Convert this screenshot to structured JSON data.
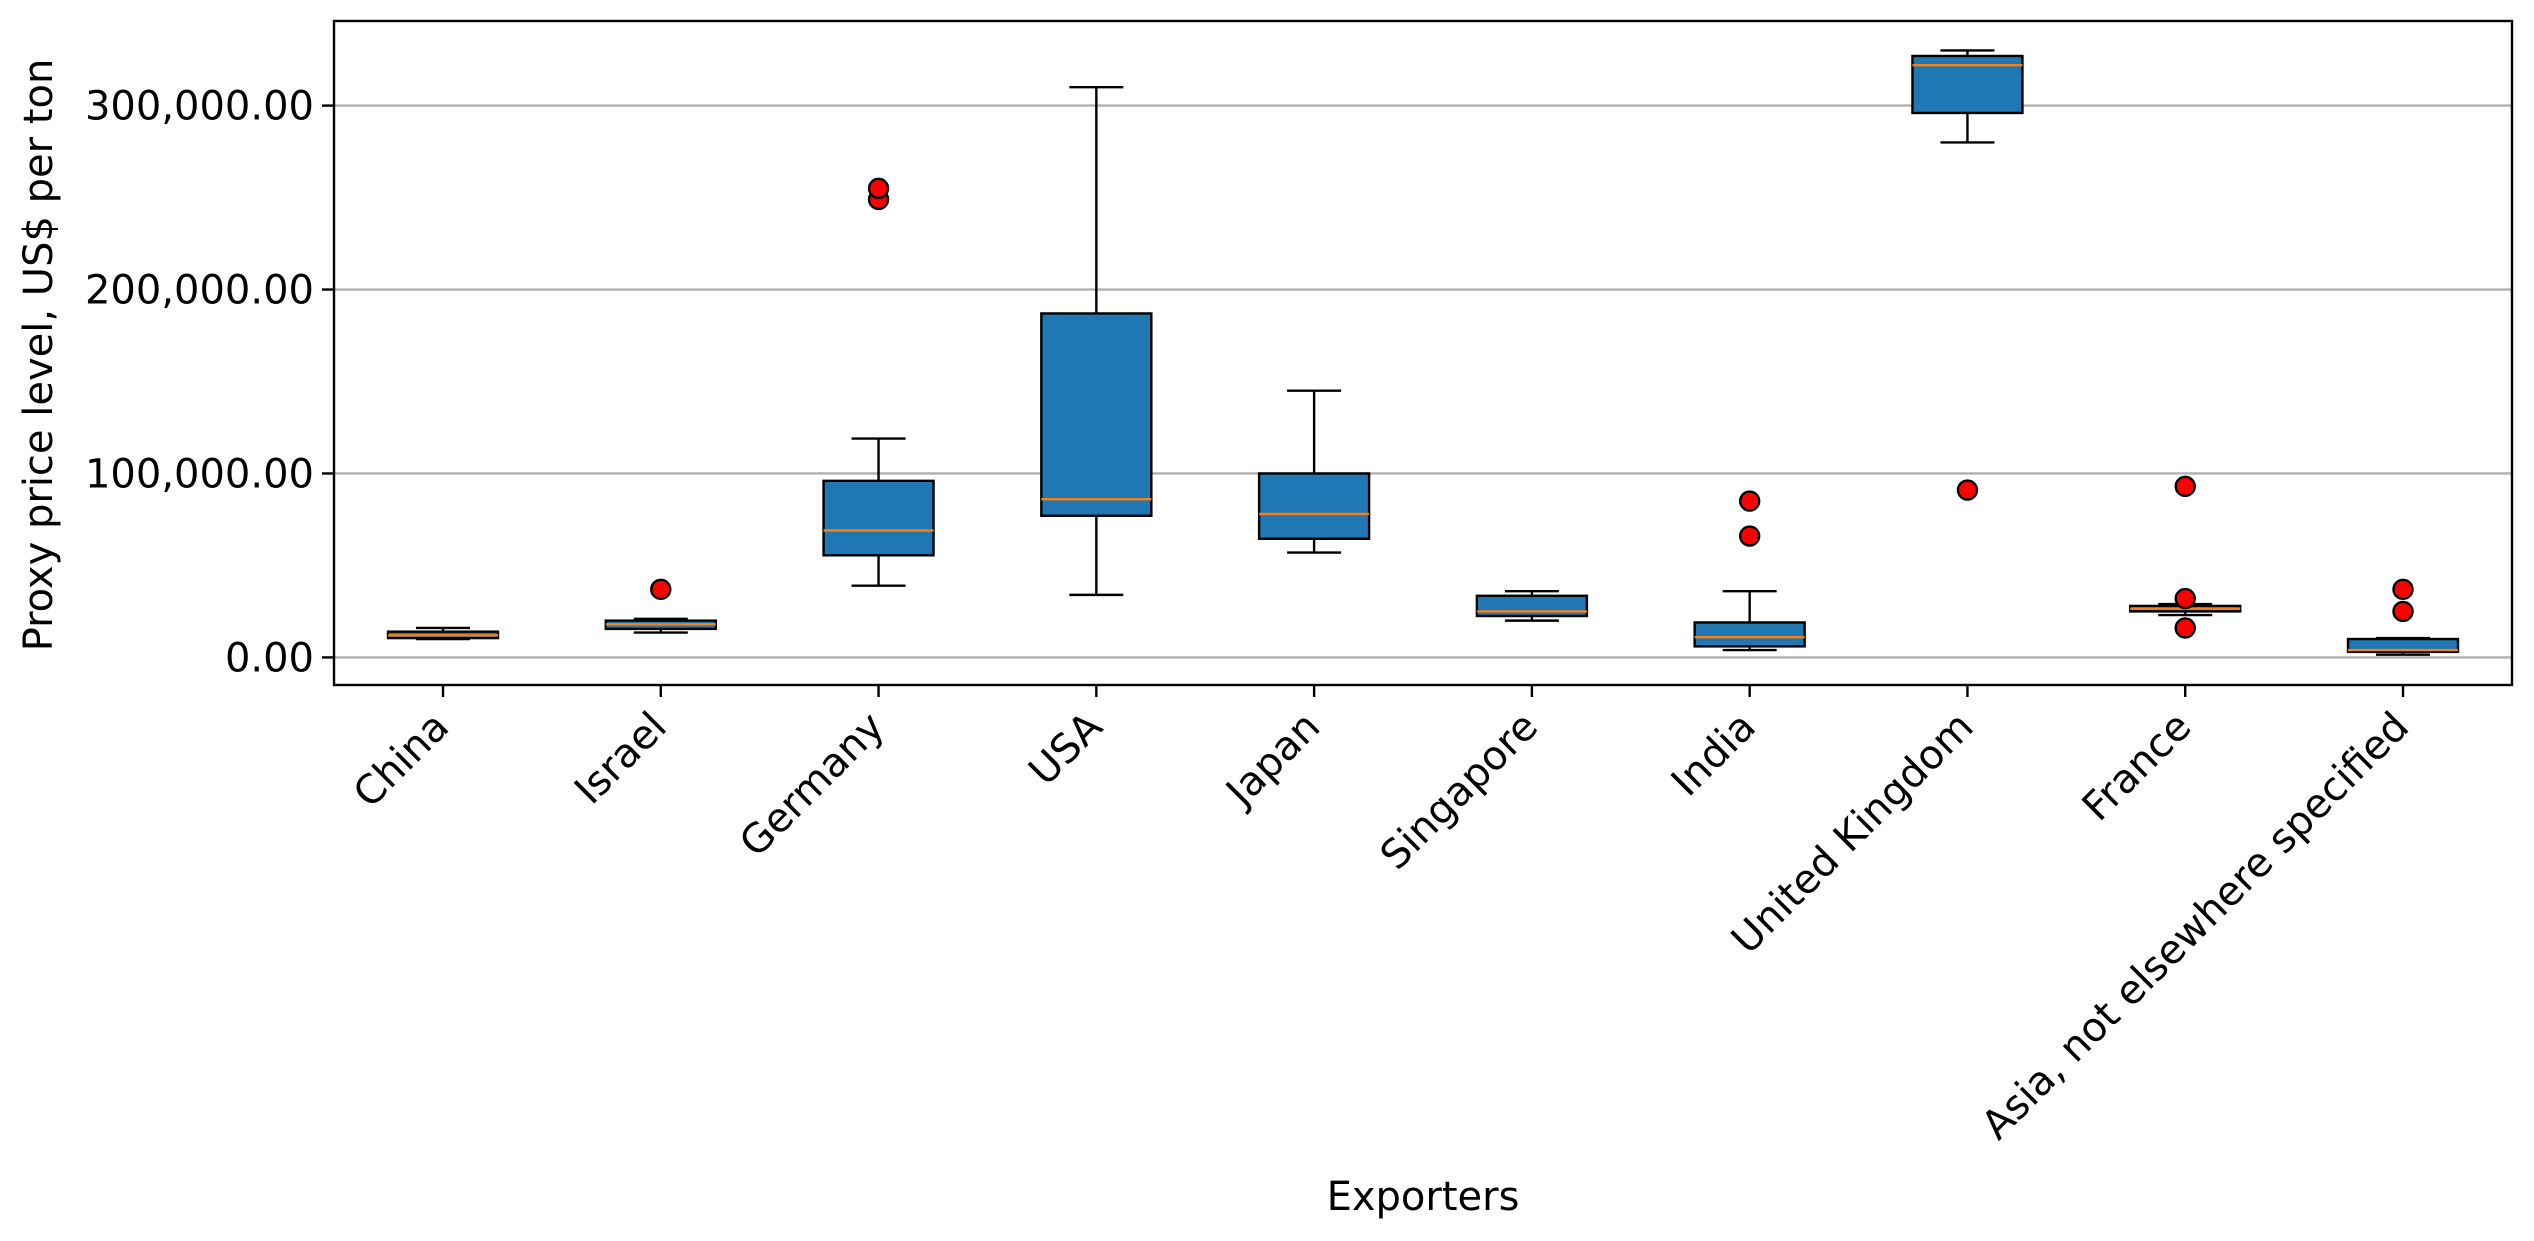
{
  "chart_data": {
    "type": "box",
    "xlabel": "Exporters",
    "ylabel": "Proxy price level, US$ per ton",
    "ylim": [
      -15000,
      346000
    ],
    "yticks": [
      0,
      100000,
      200000,
      300000
    ],
    "ytick_labels": [
      "0.00",
      "100,000.00",
      "200,000.00",
      "300,000.00"
    ],
    "grid": "y",
    "colors": {
      "box_fill": "#1f77b4",
      "median": "#ff7f0e",
      "outlier_fill": "#ff0000",
      "grid": "#b0b0b0"
    },
    "categories": [
      "China",
      "Israel",
      "Germany",
      "USA",
      "Japan",
      "Singapore",
      "India",
      "United Kingdom",
      "France",
      "Asia, not elsewhere specified"
    ],
    "boxes": [
      {
        "whisker_low": 10000,
        "q1": 10500,
        "median": 12000,
        "q3": 14000,
        "whisker_high": 16000,
        "outliers": []
      },
      {
        "whisker_low": 13500,
        "q1": 15500,
        "median": 18000,
        "q3": 20000,
        "whisker_high": 21000,
        "outliers": [
          37000
        ]
      },
      {
        "whisker_low": 39000,
        "q1": 55500,
        "median": 69000,
        "q3": 96000,
        "whisker_high": 119000,
        "outliers": [
          249000,
          255000
        ]
      },
      {
        "whisker_low": 34000,
        "q1": 77000,
        "median": 86000,
        "q3": 187000,
        "whisker_high": 310000,
        "outliers": []
      },
      {
        "whisker_low": 57000,
        "q1": 64500,
        "median": 78000,
        "q3": 100000,
        "whisker_high": 145000,
        "outliers": []
      },
      {
        "whisker_low": 20000,
        "q1": 22500,
        "median": 25000,
        "q3": 33500,
        "whisker_high": 36000,
        "outliers": []
      },
      {
        "whisker_low": 4000,
        "q1": 6000,
        "median": 11000,
        "q3": 19000,
        "whisker_high": 36000,
        "outliers": [
          66000,
          85000
        ]
      },
      {
        "whisker_low": 280000,
        "q1": 296000,
        "median": 322000,
        "q3": 327000,
        "whisker_high": 330000,
        "outliers": [
          91000
        ]
      },
      {
        "whisker_low": 23000,
        "q1": 25000,
        "median": 26500,
        "q3": 28000,
        "whisker_high": 29000,
        "outliers": [
          16000,
          32000,
          93000
        ]
      },
      {
        "whisker_low": 1500,
        "q1": 3000,
        "median": 4000,
        "q3": 10000,
        "whisker_high": 10500,
        "outliers": [
          25000,
          37000
        ]
      }
    ]
  }
}
